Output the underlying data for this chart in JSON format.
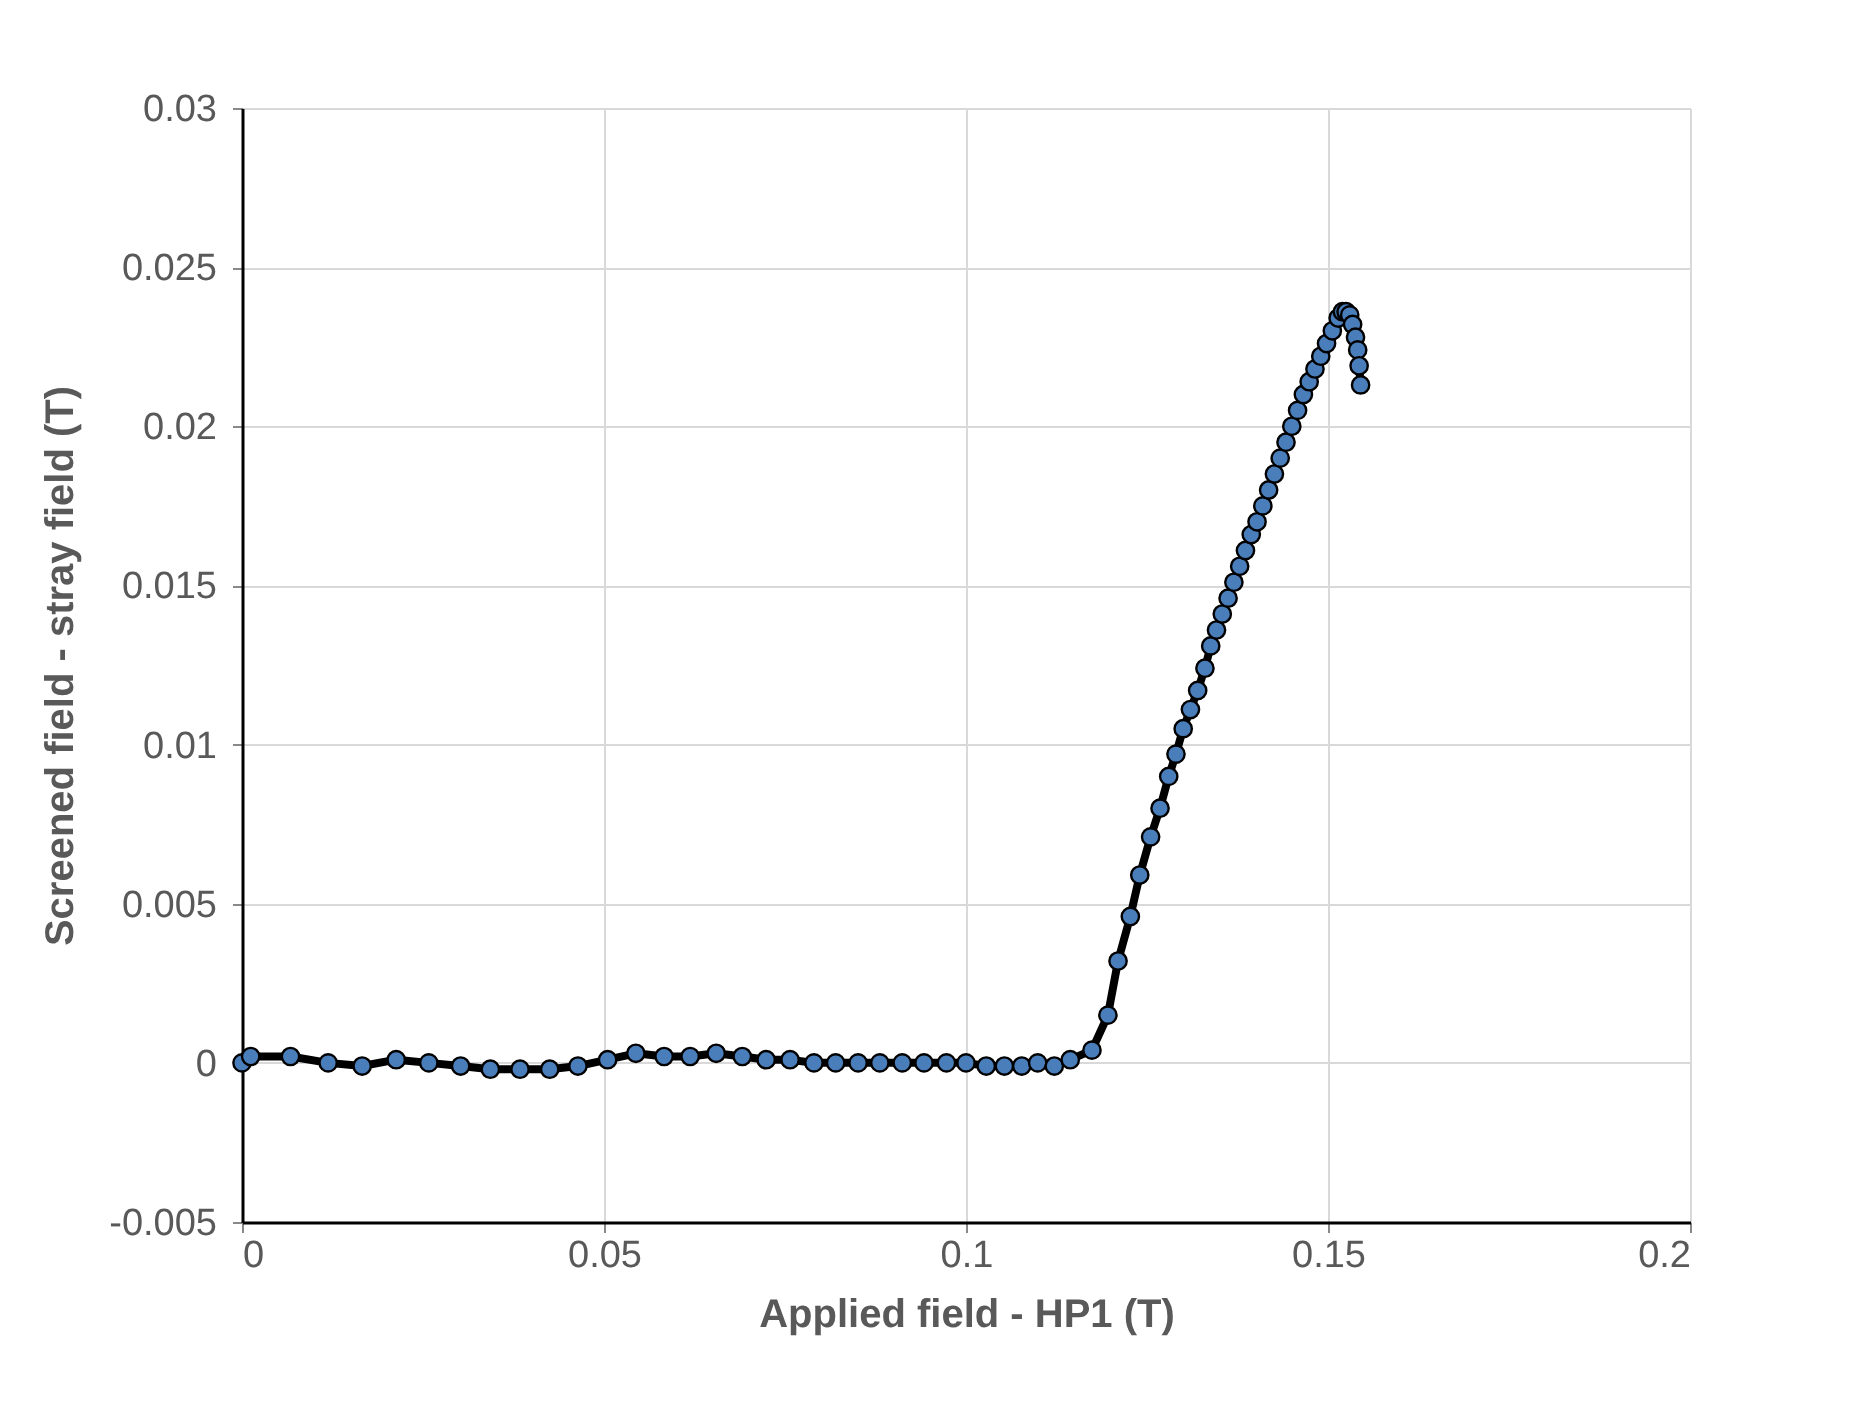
{
  "chart_data": {
    "type": "line",
    "xlabel": "Applied field - HP1 (T)",
    "ylabel": "Screened field - stray field (T)",
    "xlim": [
      0,
      0.2
    ],
    "xticks": [
      0,
      0.05,
      0.1,
      0.15,
      0.2
    ],
    "ylim": [
      -0.005,
      0.03
    ],
    "yticks": [
      -0.005,
      0,
      0.005,
      0.01,
      0.015,
      0.02,
      0.025,
      0.03
    ],
    "grid": true,
    "marker": "circle",
    "line_style": "solid",
    "series": [
      {
        "color": "#4a7ebb",
        "x": [
          0,
          0.0012,
          0.0067,
          0.0119,
          0.0166,
          0.0213,
          0.0258,
          0.0302,
          0.0343,
          0.0384,
          0.0425,
          0.0464,
          0.0505,
          0.0544,
          0.0583,
          0.0619,
          0.0655,
          0.0691,
          0.0724,
          0.0757,
          0.079,
          0.082,
          0.0851,
          0.0881,
          0.0912,
          0.0942,
          0.0973,
          0.1,
          0.1028,
          0.1053,
          0.1077,
          0.1099,
          0.1122,
          0.1144,
          0.1174,
          0.1196,
          0.121,
          0.1227,
          0.124,
          0.1255,
          0.1268,
          0.128,
          0.129,
          0.13,
          0.131,
          0.132,
          0.133,
          0.1338,
          0.1346,
          0.1354,
          0.1362,
          0.137,
          0.1378,
          0.1386,
          0.1394,
          0.1402,
          0.141,
          0.1418,
          0.1426,
          0.1434,
          0.1442,
          0.145,
          0.1458,
          0.1466,
          0.1474,
          0.1482,
          0.149,
          0.1498,
          0.1506,
          0.1514,
          0.152,
          0.1525,
          0.153,
          0.1534,
          0.1538,
          0.1541,
          0.1543,
          0.1545
        ],
        "values": [
          0,
          0.0002,
          0.0002,
          0,
          -0.0001,
          0.0001,
          0,
          -0.0001,
          -0.0002,
          -0.0002,
          -0.0002,
          -0.0001,
          0.0001,
          0.0003,
          0.0002,
          0.0002,
          0.0003,
          0.0002,
          0.0001,
          0.0001,
          0,
          0,
          0,
          0,
          0,
          0,
          0,
          0,
          -0.0001,
          -0.0001,
          -0.0001,
          0,
          -0.0001,
          0.0001,
          0.0004,
          0.0015,
          0.0032,
          0.0046,
          0.0059,
          0.0071,
          0.008,
          0.009,
          0.0097,
          0.0105,
          0.0111,
          0.0117,
          0.0124,
          0.0131,
          0.0136,
          0.0141,
          0.0146,
          0.0151,
          0.0156,
          0.0161,
          0.0166,
          0.017,
          0.0175,
          0.018,
          0.0185,
          0.019,
          0.0195,
          0.02,
          0.0205,
          0.021,
          0.0214,
          0.0218,
          0.0222,
          0.0226,
          0.023,
          0.0234,
          0.0236,
          0.0236,
          0.0235,
          0.0232,
          0.0228,
          0.0224,
          0.0219,
          0.0213
        ]
      }
    ]
  }
}
